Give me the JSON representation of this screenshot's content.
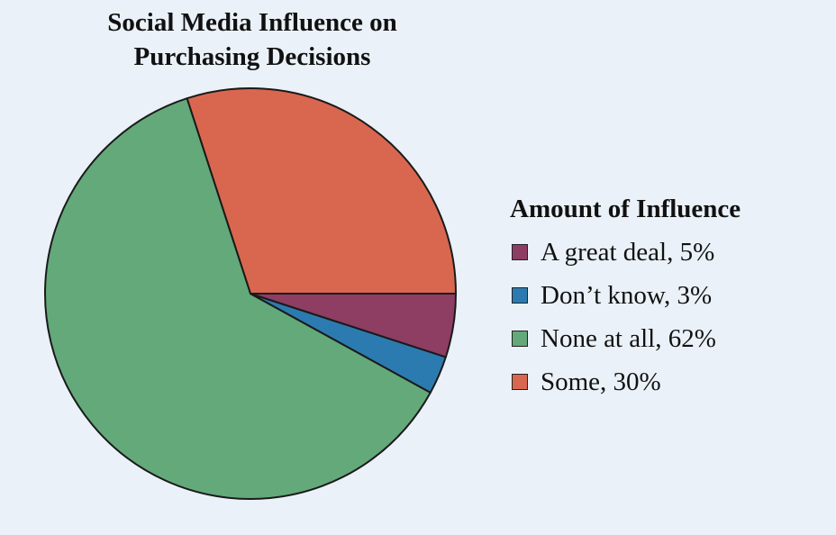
{
  "chart_data": {
    "type": "pie",
    "title_lines": [
      "Social Media Influence on",
      "Purchasing Decisions"
    ],
    "legend_title": "Amount of Influence",
    "legend_placement": "right",
    "slices": [
      {
        "label": "A great deal, 5%",
        "value": 5,
        "color": "#8e3d63"
      },
      {
        "label": "Don’t know, 3%",
        "value": 3,
        "color": "#2c7bb0"
      },
      {
        "label": "None at all, 62%",
        "value": 62,
        "color": "#63a97a"
      },
      {
        "label": "Some, 30%",
        "value": 30,
        "color": "#d9674f"
      }
    ],
    "draw_order": [
      3,
      2,
      1,
      0
    ],
    "start_angle_deg": 0,
    "direction": "counterclockwise"
  }
}
